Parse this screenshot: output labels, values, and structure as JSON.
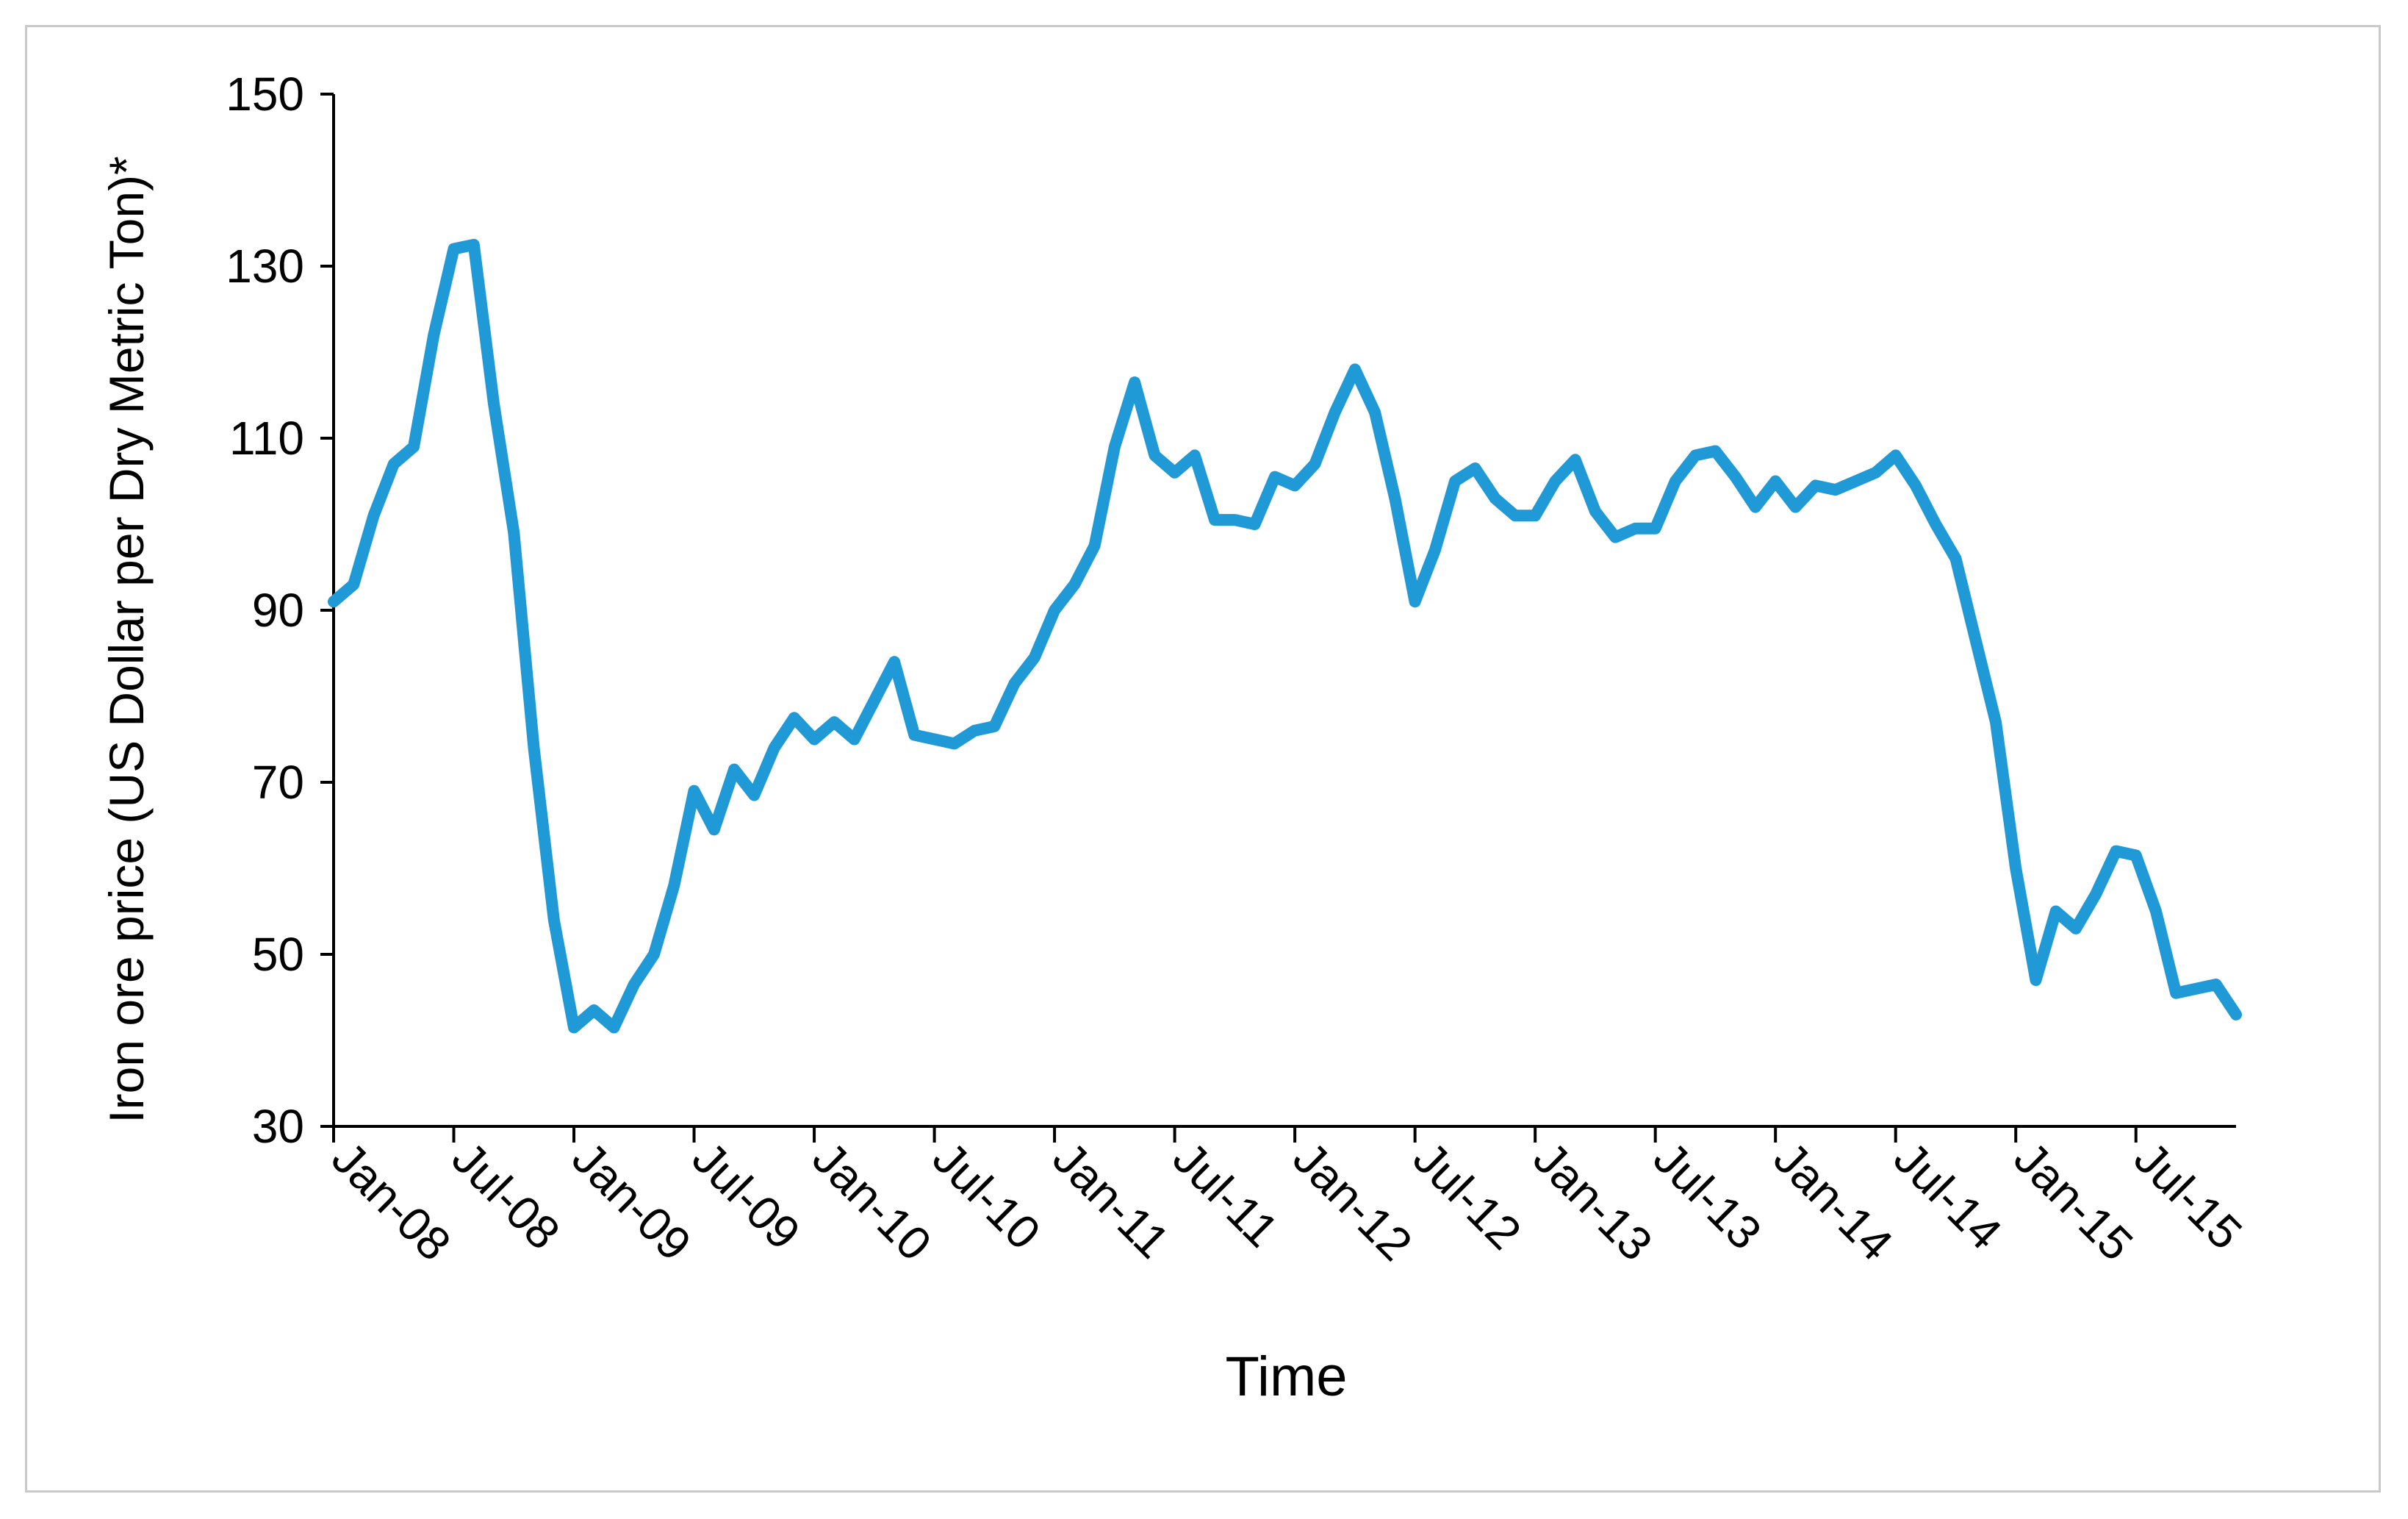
{
  "chart_data": {
    "type": "line",
    "title": "",
    "xlabel": "Time",
    "ylabel": "Iron ore price (US Dollar per Dry Metric Ton)*",
    "ylim": [
      30,
      150
    ],
    "yticks": [
      30,
      50,
      70,
      90,
      110,
      130,
      150
    ],
    "xticks": [
      "Jan-08",
      "Jul-08",
      "Jan-09",
      "Jul-09",
      "Jan-10",
      "Jul-10",
      "Jan-11",
      "Jul-11",
      "Jan-12",
      "Jul-12",
      "Jan-13",
      "Jul-13",
      "Jan-14",
      "Jul-14",
      "Jan-15",
      "Jul-15"
    ],
    "grid": false,
    "legend": "none",
    "line_color": "#1f9ad6",
    "series": [
      {
        "x": [
          "Jan-08",
          "Feb-08",
          "Mar-08",
          "Apr-08",
          "May-08",
          "Jun-08",
          "Jul-08",
          "Aug-08",
          "Sep-08",
          "Oct-08",
          "Nov-08",
          "Dec-08",
          "Jan-09",
          "Feb-09",
          "Mar-09",
          "Apr-09",
          "May-09",
          "Jun-09",
          "Jul-09",
          "Aug-09",
          "Sep-09",
          "Oct-09",
          "Nov-09",
          "Dec-09",
          "Jan-10",
          "Feb-10",
          "Mar-10",
          "Apr-10",
          "May-10",
          "Jun-10",
          "Jul-10",
          "Aug-10",
          "Sep-10",
          "Oct-10",
          "Nov-10",
          "Dec-10",
          "Jan-11",
          "Feb-11",
          "Mar-11",
          "Apr-11",
          "May-11",
          "Jun-11",
          "Jul-11",
          "Aug-11",
          "Sep-11",
          "Oct-11",
          "Nov-11",
          "Dec-11",
          "Jan-12",
          "Feb-12",
          "Mar-12",
          "Apr-12",
          "May-12",
          "Jun-12",
          "Jul-12",
          "Aug-12",
          "Sep-12",
          "Oct-12",
          "Nov-12",
          "Dec-12",
          "Jan-13",
          "Feb-13",
          "Mar-13",
          "Apr-13",
          "May-13",
          "Jun-13",
          "Jul-13",
          "Aug-13",
          "Sep-13",
          "Oct-13",
          "Nov-13",
          "Dec-13",
          "Jan-14",
          "Feb-14",
          "Mar-14",
          "Apr-14",
          "May-14",
          "Jun-14",
          "Jul-14",
          "Aug-14",
          "Sep-14",
          "Oct-14",
          "Nov-14",
          "Dec-14",
          "Jan-15",
          "Feb-15",
          "Mar-15",
          "Apr-15",
          "May-15",
          "Jun-15",
          "Jul-15",
          "Aug-15",
          "Sep-15",
          "Oct-15",
          "Nov-15",
          "Dec-15"
        ],
        "y": [
          91,
          93,
          101,
          107,
          109,
          122,
          132,
          132.5,
          114,
          99,
          74,
          54,
          41.5,
          43.5,
          41.5,
          46.5,
          50,
          58,
          69,
          64.5,
          71.5,
          68.5,
          74,
          77.5,
          75,
          77,
          75,
          79.5,
          84,
          75.5,
          75,
          74.5,
          76,
          76.5,
          81.5,
          84.5,
          90,
          93,
          97.5,
          109,
          116.5,
          108,
          106,
          108,
          100.5,
          100.5,
          100,
          105.5,
          104.5,
          107,
          113,
          118,
          113,
          103,
          91,
          97,
          105,
          106.5,
          103,
          101,
          101,
          105,
          107.5,
          101.5,
          98.5,
          99.5,
          99.5,
          105,
          108,
          108.5,
          105.5,
          102,
          105,
          102,
          104.5,
          104,
          105,
          106,
          108,
          104.5,
          100,
          96,
          86.5,
          77,
          60,
          47,
          55,
          53,
          57,
          62,
          61.5,
          55,
          45.5,
          46,
          46.5,
          43
        ]
      }
    ]
  }
}
